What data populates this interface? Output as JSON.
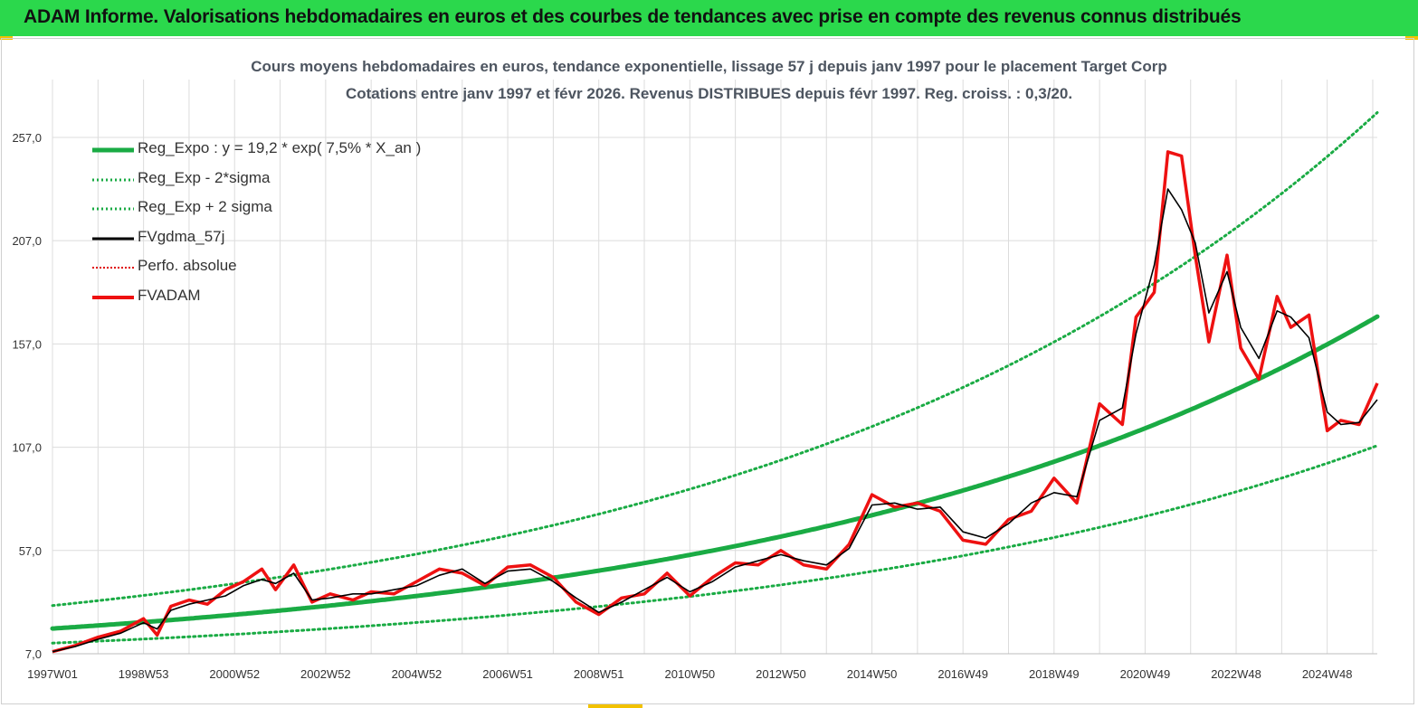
{
  "header": {
    "title": "ADAM Informe. Valorisations hebdomadaires en euros et des courbes de tendances avec prise en compte des revenus connus distribués"
  },
  "colors": {
    "banner": "#2bd84c",
    "reg_expo": "#1aab44",
    "sigma": "#1aab44",
    "fvgdma": "#000000",
    "perfo": "#e00000",
    "fvadam": "#ee1111",
    "grid": "#dcdcdc"
  },
  "chart_data": {
    "type": "line",
    "title": "Cours moyens hebdomadaires en euros, tendance exponentielle, lissage 57 j depuis janv 1997 pour le placement Target Corp",
    "subtitle": "Cotations entre janv 1997 et févr 2026. Revenus DISTRIBUES depuis févr 1997. Reg. croiss. : 0,3/20.",
    "xlabel": "",
    "ylabel": "",
    "x_range": [
      1997.0,
      2026.1
    ],
    "ylim": [
      7,
      285
    ],
    "yticks": [
      7,
      57,
      107,
      157,
      207,
      257
    ],
    "ytick_labels": [
      "7,0",
      "57,0",
      "107,0",
      "157,0",
      "207,0",
      "257,0"
    ],
    "xtick_labels": [
      "1997W01",
      "1998W53",
      "2000W52",
      "2002W52",
      "2004W52",
      "2006W51",
      "2008W51",
      "2010W50",
      "2012W50",
      "2014W50",
      "2016W49",
      "2018W49",
      "2020W49",
      "2022W48",
      "2024W48"
    ],
    "xtick_years": [
      1997.0,
      1999.0,
      2001.0,
      2003.0,
      2005.0,
      2007.0,
      2009.0,
      2011.0,
      2013.0,
      2015.0,
      2017.0,
      2019.0,
      2021.0,
      2023.0,
      2025.0
    ],
    "grid": true,
    "legend_position": "top-left",
    "trend": {
      "label": "Reg_Expo : y = 19,2 * exp( 7,5% *  X_an )",
      "start_value": 19.2,
      "growth_rate": 0.075,
      "sigma_factor": 1.58
    },
    "series": [
      {
        "name": "Reg_Expo : y = 19,2 * exp( 7,5% *  X_an )",
        "style": "solid-thick",
        "x": [
          1997,
          2000,
          2003,
          2006,
          2009,
          2012,
          2015,
          2018,
          2021,
          2024,
          2026.1
        ],
        "y": [
          19.2,
          24.1,
          30.2,
          37.8,
          47.3,
          59.3,
          74.3,
          93.1,
          116.6,
          146.1,
          170.0
        ]
      },
      {
        "name": "Reg_Exp - 2*sigma",
        "style": "dotted",
        "x": [
          1997,
          2000,
          2003,
          2006,
          2009,
          2012,
          2015,
          2018,
          2021,
          2024,
          2026.1
        ],
        "y": [
          12.2,
          15.3,
          19.1,
          23.9,
          29.9,
          37.5,
          47.0,
          58.9,
          73.8,
          92.5,
          107.6
        ]
      },
      {
        "name": "Reg_Exp + 2 sigma",
        "style": "dotted",
        "x": [
          1997,
          2000,
          2003,
          2006,
          2009,
          2012,
          2015,
          2018,
          2021,
          2024,
          2026.1
        ],
        "y": [
          30.3,
          38.0,
          47.7,
          59.7,
          74.8,
          93.7,
          117.4,
          147.1,
          184.3,
          230.9,
          268.6
        ]
      },
      {
        "name": "FVgdma_57j",
        "style": "solid-thin",
        "x": [
          1997.0,
          1997.5,
          1998.0,
          1998.5,
          1999.0,
          1999.3,
          1999.6,
          2000.0,
          2000.4,
          2000.8,
          2001.2,
          2001.6,
          2001.9,
          2002.3,
          2002.7,
          2003.1,
          2003.6,
          2004.0,
          2004.5,
          2005.0,
          2005.5,
          2006.0,
          2006.5,
          2007.0,
          2007.5,
          2008.0,
          2008.5,
          2009.0,
          2009.5,
          2010.0,
          2010.5,
          2011.0,
          2011.5,
          2012.0,
          2012.5,
          2013.0,
          2013.5,
          2014.0,
          2014.5,
          2015.0,
          2015.5,
          2016.0,
          2016.5,
          2017.0,
          2017.5,
          2018.0,
          2018.5,
          2019.0,
          2019.5,
          2020.0,
          2020.5,
          2020.8,
          2021.2,
          2021.5,
          2021.8,
          2022.1,
          2022.4,
          2022.8,
          2023.1,
          2023.5,
          2023.9,
          2024.2,
          2024.6,
          2025.0,
          2025.3,
          2025.7,
          2026.1
        ],
        "y": [
          8.0,
          10.5,
          14.0,
          17.0,
          22.0,
          19.0,
          28.0,
          31.0,
          33.0,
          35.0,
          40.0,
          43.0,
          41.0,
          46.0,
          33.0,
          34.0,
          36.0,
          36.0,
          38.0,
          40.0,
          45.0,
          48.0,
          41.0,
          47.0,
          48.0,
          42.0,
          34.0,
          27.0,
          32.0,
          38.0,
          44.0,
          37.0,
          42.0,
          49.0,
          52.0,
          55.0,
          52.0,
          50.0,
          58.0,
          79.0,
          80.0,
          77.0,
          78.0,
          66.0,
          63.0,
          70.0,
          80.0,
          85.0,
          83.0,
          120.0,
          126.0,
          162.0,
          195.0,
          232.0,
          222.0,
          206.0,
          172.0,
          192.0,
          165.0,
          150.0,
          173.0,
          170.0,
          160.0,
          124.0,
          118.0,
          119.0,
          130.0
        ]
      },
      {
        "name": "Perfo. absolue",
        "style": "dotted",
        "x": [],
        "y": []
      },
      {
        "name": "FVADAM",
        "style": "solid-red",
        "x": [
          1997.0,
          1997.5,
          1998.0,
          1998.5,
          1999.0,
          1999.3,
          1999.6,
          2000.0,
          2000.4,
          2000.8,
          2001.2,
          2001.6,
          2001.9,
          2002.3,
          2002.7,
          2003.1,
          2003.6,
          2004.0,
          2004.5,
          2005.0,
          2005.5,
          2006.0,
          2006.5,
          2007.0,
          2007.5,
          2008.0,
          2008.5,
          2009.0,
          2009.5,
          2010.0,
          2010.5,
          2011.0,
          2011.5,
          2012.0,
          2012.5,
          2013.0,
          2013.5,
          2014.0,
          2014.5,
          2015.0,
          2015.5,
          2016.0,
          2016.5,
          2017.0,
          2017.5,
          2018.0,
          2018.5,
          2019.0,
          2019.5,
          2020.0,
          2020.5,
          2020.8,
          2021.2,
          2021.5,
          2021.8,
          2022.1,
          2022.4,
          2022.8,
          2023.1,
          2023.5,
          2023.9,
          2024.2,
          2024.6,
          2025.0,
          2025.3,
          2025.7,
          2026.1
        ],
        "y": [
          8.0,
          11.0,
          15.0,
          18.0,
          24.0,
          16.0,
          30.0,
          33.0,
          31.0,
          38.0,
          42.0,
          48.0,
          38.0,
          50.0,
          32.0,
          36.0,
          33.0,
          37.0,
          36.0,
          42.0,
          48.0,
          46.0,
          40.0,
          49.0,
          50.0,
          44.0,
          32.0,
          26.0,
          34.0,
          36.0,
          46.0,
          35.0,
          44.0,
          51.0,
          50.0,
          57.0,
          50.0,
          48.0,
          60.0,
          84.0,
          78.0,
          80.0,
          76.0,
          62.0,
          60.0,
          72.0,
          76.0,
          92.0,
          80.0,
          128.0,
          118.0,
          170.0,
          182.0,
          250.0,
          248.0,
          200.0,
          158.0,
          200.0,
          155.0,
          140.0,
          180.0,
          165.0,
          171.0,
          115.0,
          120.0,
          118.0,
          138.0
        ]
      }
    ]
  }
}
